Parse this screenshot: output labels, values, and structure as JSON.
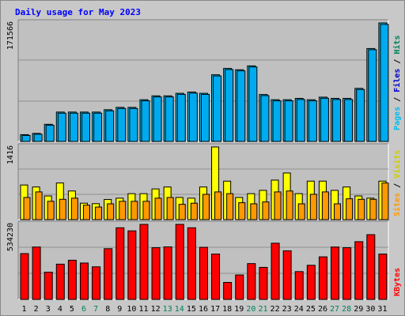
{
  "chart_data": [
    {
      "type": "bar",
      "title": "Daily usage for May 2023",
      "ymax_label": "171566",
      "ylim": [
        0,
        171566
      ],
      "grid": true,
      "legend": [
        "Pages",
        "Files",
        "Hits"
      ],
      "categories": [
        "1",
        "2",
        "3",
        "4",
        "5",
        "6",
        "7",
        "8",
        "9",
        "10",
        "11",
        "12",
        "13",
        "14",
        "15",
        "16",
        "17",
        "18",
        "19",
        "20",
        "21",
        "22",
        "23",
        "24",
        "25",
        "26",
        "27",
        "28",
        "29",
        "30",
        "31"
      ],
      "series": [
        {
          "name": "Hits",
          "color": "#00ccff",
          "values": [
            9800,
            11600,
            24800,
            42500,
            42500,
            42500,
            42500,
            45900,
            49300,
            49300,
            60400,
            66000,
            66000,
            69700,
            71500,
            69700,
            96500,
            105700,
            103800,
            109400,
            67900,
            60400,
            60400,
            62300,
            60400,
            64100,
            62300,
            62300,
            76800,
            134500,
            171566
          ]
        },
        {
          "name": "Files",
          "color": "#0066cc",
          "values": [
            8700,
            10400,
            23400,
            40900,
            40900,
            40900,
            40900,
            44300,
            47700,
            47700,
            58800,
            64400,
            64400,
            68100,
            69900,
            68100,
            94800,
            104000,
            102200,
            107800,
            66300,
            58800,
            58800,
            60700,
            58800,
            62500,
            60700,
            60700,
            75200,
            132800,
            169500
          ]
        },
        {
          "name": "Pages",
          "color": "#00ccff",
          "values": [
            0,
            0,
            0,
            0,
            0,
            0,
            0,
            0,
            0,
            0,
            0,
            0,
            0,
            0,
            0,
            0,
            0,
            0,
            0,
            0,
            0,
            0,
            0,
            0,
            0,
            0,
            0,
            0,
            0,
            0,
            0
          ]
        }
      ],
      "weekend_days": [
        "6",
        "7",
        "13",
        "14",
        "20",
        "21",
        "27",
        "28"
      ]
    },
    {
      "type": "bar",
      "ymax_label": "1416",
      "ylim": [
        0,
        1416
      ],
      "grid": true,
      "legend": [
        "Sites",
        "Visits"
      ],
      "categories": [
        "1",
        "2",
        "3",
        "4",
        "5",
        "6",
        "7",
        "8",
        "9",
        "10",
        "11",
        "12",
        "13",
        "14",
        "15",
        "16",
        "17",
        "18",
        "19",
        "20",
        "21",
        "22",
        "23",
        "24",
        "25",
        "26",
        "27",
        "28",
        "29",
        "30",
        "31"
      ],
      "series": [
        {
          "name": "Visits",
          "color": "#ffff00",
          "values": [
            675,
            636,
            461,
            714,
            558,
            320,
            311,
            393,
            418,
            506,
            506,
            598,
            636,
            432,
            418,
            636,
            1416,
            750,
            432,
            506,
            570,
            770,
            909,
            506,
            750,
            750,
            570,
            636,
            461,
            418,
            750
          ]
        },
        {
          "name": "Sites",
          "color": "#ff9900",
          "values": [
            432,
            540,
            357,
            396,
            418,
            282,
            245,
            308,
            357,
            357,
            357,
            418,
            432,
            298,
            320,
            493,
            540,
            506,
            330,
            308,
            345,
            540,
            558,
            308,
            493,
            540,
            308,
            406,
            396,
            396,
            714
          ]
        }
      ]
    },
    {
      "type": "bar",
      "ymax_label": "534230",
      "ylim": [
        0,
        534230
      ],
      "grid": true,
      "legend": [
        "KBytes"
      ],
      "categories": [
        "1",
        "2",
        "3",
        "4",
        "5",
        "6",
        "7",
        "8",
        "9",
        "10",
        "11",
        "12",
        "13",
        "14",
        "15",
        "16",
        "17",
        "18",
        "19",
        "20",
        "21",
        "22",
        "23",
        "24",
        "25",
        "26",
        "27",
        "28",
        "29",
        "30",
        "31"
      ],
      "series": [
        {
          "name": "KBytes",
          "color": "#ff0000",
          "values": [
            326000,
            373000,
            194000,
            251000,
            279000,
            259000,
            232000,
            361000,
            510000,
            488000,
            534230,
            368000,
            374000,
            534230,
            510000,
            371000,
            323000,
            121000,
            174000,
            255000,
            228000,
            400000,
            346000,
            198000,
            243000,
            303000,
            373000,
            368000,
            411000,
            461000,
            323000
          ]
        }
      ]
    }
  ],
  "colors": {
    "frame_bg": "#c8c8c8",
    "plot_bg": "#c0c0c0",
    "title": "#0000ff",
    "weekday_label": "#000000",
    "weekend_label": "#00805c",
    "legend_sep": "#000000"
  }
}
